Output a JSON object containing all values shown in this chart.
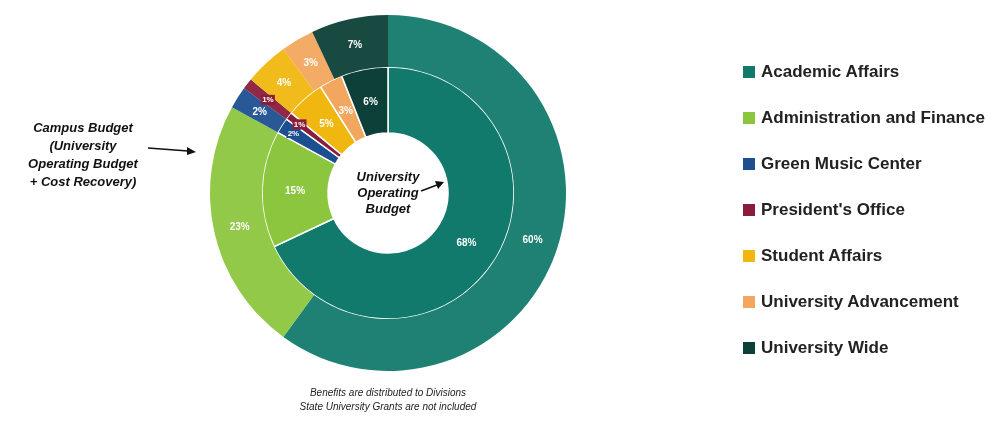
{
  "chart_data": {
    "type": "donut",
    "categories": [
      "Academic Affairs",
      "Administration and Finance",
      "Green Music Center",
      "President's Office",
      "Student Affairs",
      "University Advancement",
      "University Wide"
    ],
    "colors": [
      "#127a6c",
      "#8cc63e",
      "#1c4f8f",
      "#8a1c3c",
      "#efb70f",
      "#f2a65e",
      "#0c4038"
    ],
    "series": [
      {
        "name": "University Operating Budget",
        "values": [
          68,
          15,
          2,
          1,
          5,
          3,
          6
        ],
        "value_labels": [
          "68%",
          "15%",
          "2%",
          "1%",
          "5%",
          "3%",
          "6%"
        ]
      },
      {
        "name": "Campus Budget (University Operating Budget + Cost Recovery)",
        "values": [
          60,
          23,
          2,
          1,
          4,
          3,
          7
        ],
        "value_labels": [
          "60%",
          "23%",
          "2%",
          "1%",
          "4%",
          "3%",
          "7%"
        ]
      }
    ],
    "legend": "right",
    "annotations": [
      "Benefits are distributed to Divisions",
      "State University Grants are not included"
    ]
  }
}
